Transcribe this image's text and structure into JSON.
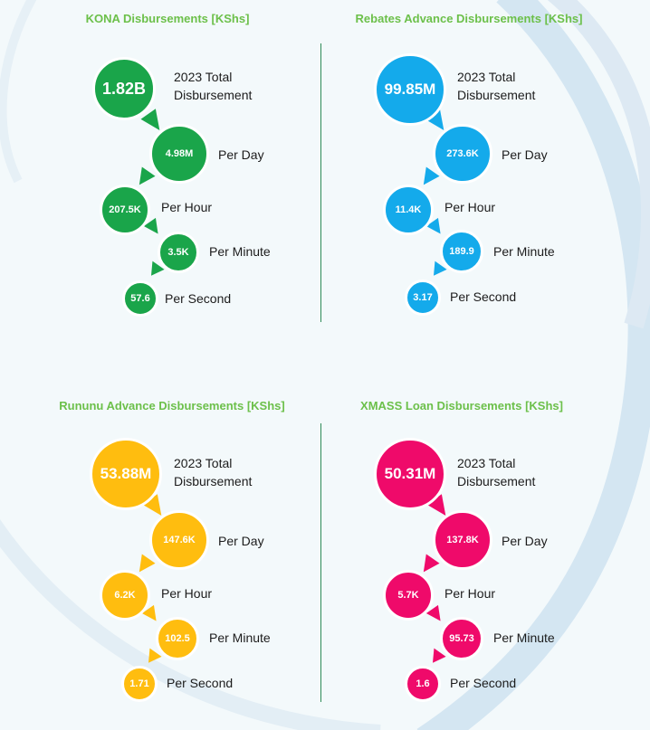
{
  "panels": [
    {
      "title": "KONA Disbursements [KShs]",
      "color": "#1aa54a",
      "total": "1.82B",
      "total_label_1": "2023 Total",
      "total_label_2": "Disbursement",
      "per_day": "4.98M",
      "per_day_label": "Per Day",
      "per_hour": "207.5K",
      "per_hour_label": "Per Hour",
      "per_minute": "3.5K",
      "per_minute_label": "Per Minute",
      "per_second": "57.6",
      "per_second_label": "Per Second"
    },
    {
      "title": "Rebates Advance Disbursements [KShs]",
      "color": "#14aaeb",
      "total": "99.85M",
      "total_label_1": "2023 Total",
      "total_label_2": "Disbursement",
      "per_day": "273.6K",
      "per_day_label": "Per Day",
      "per_hour": "11.4K",
      "per_hour_label": "Per Hour",
      "per_minute": "189.9",
      "per_minute_label": "Per Minute",
      "per_second": "3.17",
      "per_second_label": "Per Second"
    },
    {
      "title": "Rununu Advance Disbursements [KShs]",
      "color": "#ffbd0f",
      "total": "53.88M",
      "total_label_1": "2023 Total",
      "total_label_2": "Disbursement",
      "per_day": "147.6K",
      "per_day_label": "Per Day",
      "per_hour": "6.2K",
      "per_hour_label": "Per Hour",
      "per_minute": "102.5",
      "per_minute_label": "Per Minute",
      "per_second": "1.71",
      "per_second_label": "Per Second"
    },
    {
      "title": "XMASS Loan Disbursements [KShs]",
      "color": "#ef0a6a",
      "total": "50.31M",
      "total_label_1": "2023 Total",
      "total_label_2": "Disbursement",
      "per_day": "137.8K",
      "per_day_label": "Per Day",
      "per_hour": "5.7K",
      "per_hour_label": "Per Hour",
      "per_minute": "95.73",
      "per_minute_label": "Per Minute",
      "per_second": "1.6",
      "per_second_label": "Per Second"
    }
  ]
}
